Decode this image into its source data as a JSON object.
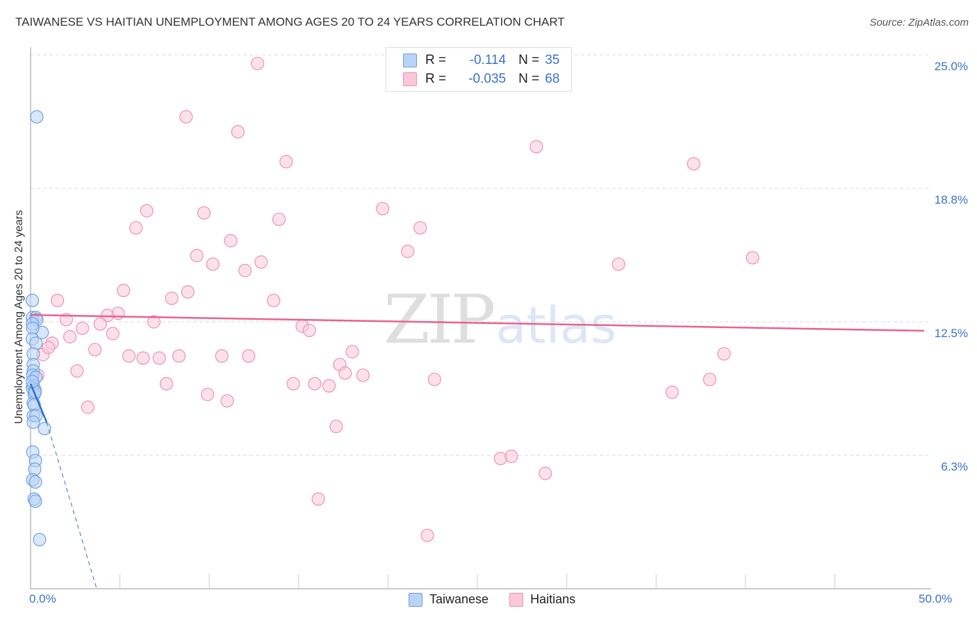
{
  "header": {
    "title": "TAIWANESE VS HAITIAN UNEMPLOYMENT AMONG AGES 20 TO 24 YEARS CORRELATION CHART",
    "source": "Source: ZipAtlas.com"
  },
  "legend": {
    "series": [
      {
        "name": "Taiwanese",
        "r_label": "R =",
        "r_value": "-0.114",
        "n_label": "N =",
        "n_value": "35",
        "color": "#b8d3f5",
        "stroke": "#6fa0e0"
      },
      {
        "name": "Haitians",
        "r_label": "R =",
        "r_value": "-0.035",
        "n_label": "N =",
        "n_value": "68",
        "color": "#fac8d8",
        "stroke": "#ec93b0"
      }
    ]
  },
  "axes": {
    "ylabel": "Unemployment Among Ages 20 to 24 years",
    "y_ticks": [
      "25.0%",
      "18.8%",
      "12.5%",
      "6.3%"
    ],
    "x_ticks": [
      "0.0%",
      "50.0%"
    ]
  },
  "watermark": {
    "zip": "ZIP",
    "atlas": "atlas"
  },
  "colors": {
    "blue_point": "#b8d3f5",
    "blue_stroke": "#6fa0e0",
    "blue_trend": "#2b6fd6",
    "pink_point": "#fac8d8",
    "pink_stroke": "#ec93b0",
    "pink_trend": "#e8638f",
    "tick_text": "#3a72c9",
    "grid": "#d8d8d8"
  },
  "chart_data": {
    "type": "scatter",
    "title": "TAIWANESE VS HAITIAN UNEMPLOYMENT AMONG AGES 20 TO 24 YEARS CORRELATION CHART",
    "xlabel": "",
    "ylabel": "Unemployment Among Ages 20 to 24 years",
    "xlim": [
      0,
      50
    ],
    "ylim": [
      0,
      25.4
    ],
    "x_unit": "%",
    "y_unit": "%",
    "y_gridlines": [
      6.25,
      12.5,
      18.75,
      25.0
    ],
    "grid": true,
    "legend_position": "top-center",
    "series": [
      {
        "name": "Taiwanese",
        "r": -0.114,
        "n": 35,
        "trend": {
          "x0": 0.0,
          "y0": 9.6,
          "x1": 0.9,
          "y1": 7.8,
          "dashed_extension_to": {
            "x": 3.7,
            "y": 0.0
          }
        },
        "points": [
          [
            0.35,
            22.1
          ],
          [
            0.1,
            13.5
          ],
          [
            0.1,
            12.7
          ],
          [
            0.3,
            12.7
          ],
          [
            0.35,
            12.6
          ],
          [
            0.65,
            12.0
          ],
          [
            0.1,
            12.4
          ],
          [
            0.12,
            12.2
          ],
          [
            0.1,
            11.7
          ],
          [
            0.3,
            11.5
          ],
          [
            0.15,
            11.0
          ],
          [
            0.15,
            10.5
          ],
          [
            0.15,
            10.2
          ],
          [
            0.12,
            10.0
          ],
          [
            0.3,
            9.9
          ],
          [
            0.15,
            9.5
          ],
          [
            0.1,
            9.4
          ],
          [
            0.25,
            9.3
          ],
          [
            0.2,
            9.1
          ],
          [
            0.15,
            8.7
          ],
          [
            0.2,
            8.6
          ],
          [
            0.15,
            8.1
          ],
          [
            0.3,
            8.1
          ],
          [
            0.78,
            7.5
          ],
          [
            0.15,
            7.8
          ],
          [
            0.12,
            6.4
          ],
          [
            0.27,
            6.0
          ],
          [
            0.23,
            5.6
          ],
          [
            0.12,
            5.1
          ],
          [
            0.27,
            5.0
          ],
          [
            0.2,
            4.2
          ],
          [
            0.27,
            4.1
          ],
          [
            0.5,
            2.3
          ],
          [
            0.25,
            9.2
          ],
          [
            0.1,
            9.7
          ]
        ]
      },
      {
        "name": "Haitians",
        "r": -0.035,
        "n": 68,
        "trend": {
          "x0": 0.0,
          "y0": 12.82,
          "x1": 50.0,
          "y1": 12.08
        },
        "points": [
          [
            12.7,
            24.6
          ],
          [
            8.7,
            22.1
          ],
          [
            11.6,
            21.4
          ],
          [
            28.3,
            20.7
          ],
          [
            37.1,
            19.9
          ],
          [
            14.3,
            20.0
          ],
          [
            19.7,
            17.8
          ],
          [
            6.5,
            17.7
          ],
          [
            9.7,
            17.6
          ],
          [
            13.9,
            17.3
          ],
          [
            21.8,
            16.9
          ],
          [
            5.9,
            16.9
          ],
          [
            11.2,
            16.3
          ],
          [
            21.1,
            15.8
          ],
          [
            9.3,
            15.6
          ],
          [
            40.4,
            15.5
          ],
          [
            12.9,
            15.3
          ],
          [
            32.9,
            15.2
          ],
          [
            10.2,
            15.2
          ],
          [
            12.0,
            14.9
          ],
          [
            5.2,
            13.97
          ],
          [
            8.8,
            13.9
          ],
          [
            1.5,
            13.5
          ],
          [
            13.6,
            13.5
          ],
          [
            7.9,
            13.6
          ],
          [
            4.9,
            12.9
          ],
          [
            4.3,
            12.8
          ],
          [
            2.0,
            12.6
          ],
          [
            2.9,
            12.2
          ],
          [
            3.9,
            12.4
          ],
          [
            6.9,
            12.5
          ],
          [
            15.2,
            12.3
          ],
          [
            15.6,
            12.1
          ],
          [
            4.6,
            11.95
          ],
          [
            2.2,
            11.8
          ],
          [
            1.2,
            11.5
          ],
          [
            3.6,
            11.2
          ],
          [
            0.7,
            10.97
          ],
          [
            5.5,
            10.9
          ],
          [
            6.3,
            10.8
          ],
          [
            7.2,
            10.8
          ],
          [
            8.3,
            10.9
          ],
          [
            10.7,
            10.9
          ],
          [
            12.2,
            10.9
          ],
          [
            18.0,
            11.1
          ],
          [
            38.8,
            11.0
          ],
          [
            17.3,
            10.5
          ],
          [
            17.6,
            10.1
          ],
          [
            18.6,
            10.0
          ],
          [
            2.6,
            10.2
          ],
          [
            22.6,
            9.8
          ],
          [
            38.0,
            9.8
          ],
          [
            7.6,
            9.6
          ],
          [
            14.7,
            9.6
          ],
          [
            15.9,
            9.6
          ],
          [
            16.7,
            9.5
          ],
          [
            35.9,
            9.2
          ],
          [
            9.9,
            9.1
          ],
          [
            11.0,
            8.8
          ],
          [
            3.2,
            8.5
          ],
          [
            17.1,
            7.6
          ],
          [
            26.3,
            6.1
          ],
          [
            26.9,
            6.2
          ],
          [
            28.8,
            5.4
          ],
          [
            16.1,
            4.2
          ],
          [
            22.2,
            2.5
          ],
          [
            0.4,
            10.0
          ],
          [
            1.0,
            11.3
          ]
        ]
      }
    ]
  }
}
